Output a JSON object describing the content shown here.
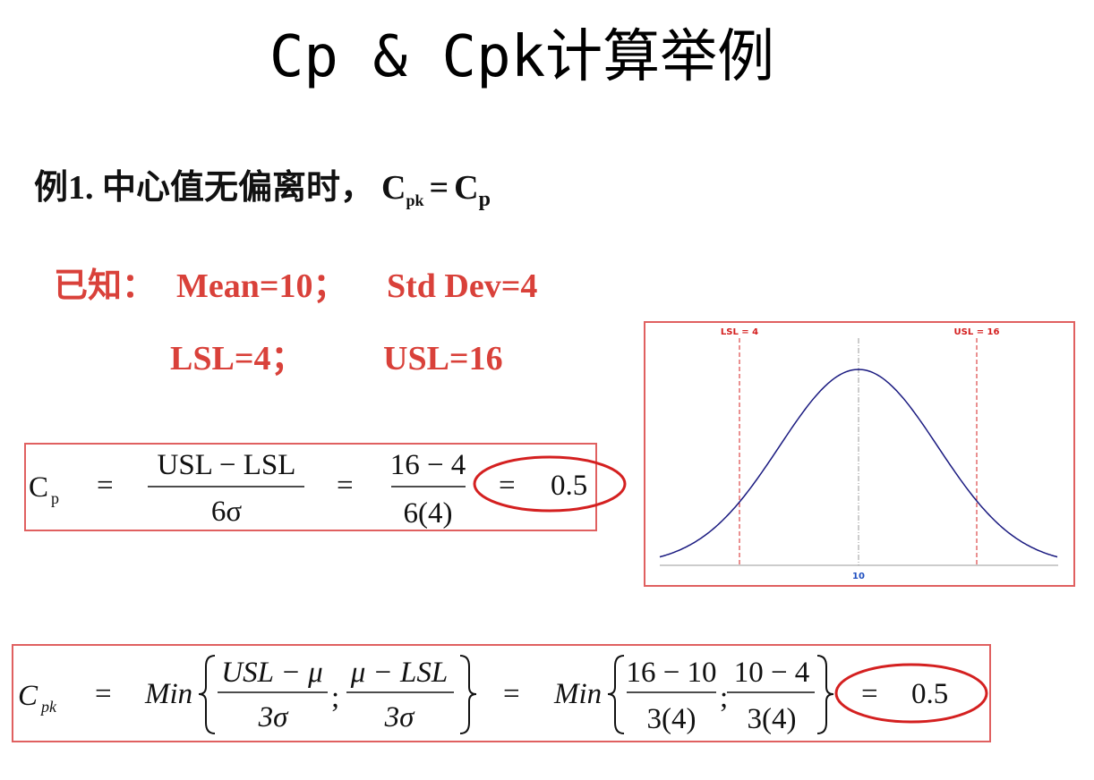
{
  "title": "Cp & Cpk计算举例",
  "example": {
    "prefix": "例1. 中心值无偏离时，",
    "lhs": "C",
    "lhs_sub": "pk",
    "equals": "=",
    "rhs": "C",
    "rhs_sub": "p"
  },
  "given": {
    "label": "已知：",
    "mean": "Mean=10；",
    "std_dev": "Std  Dev=4",
    "lsl": "LSL=4；",
    "usl": "USL=16"
  },
  "cp_formula": {
    "symbol": "C",
    "symbol_sub": "p",
    "eq1": "=",
    "numerator": "USL − LSL",
    "denominator": "6σ",
    "eq2": "=",
    "value_numerator": "16 − 4",
    "value_denominator": "6(4)",
    "eq3": "=",
    "result": "0.5"
  },
  "cpk_formula": {
    "symbol": "C",
    "symbol_sub": "pk",
    "eq1": "=",
    "min1": "Min",
    "numerator1": "USL − μ",
    "denominator1": "3σ",
    "separator1": ";",
    "numerator2": "μ − LSL",
    "denominator2": "3σ",
    "eq2": "=",
    "min2": "Min",
    "value_numerator1": "16 − 10",
    "value_denominator1": "3(4)",
    "separator2": ";",
    "value_numerator2": "10 − 4",
    "value_denominator2": "3(4)",
    "eq3": "=",
    "result": "0.5"
  },
  "figure": {
    "lsl_label": "LSL = 4",
    "usl_label": "USL = 16",
    "center_label": "10"
  }
}
